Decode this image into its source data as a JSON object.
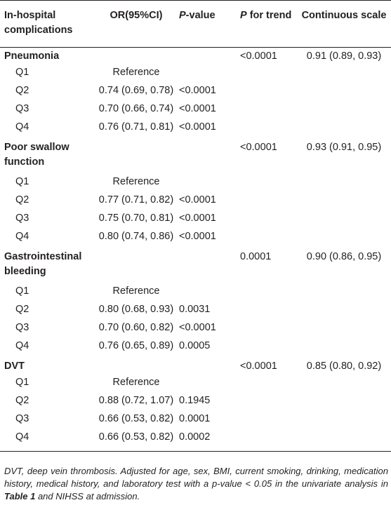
{
  "table": {
    "headers": {
      "complications": "In-hospital complications",
      "or": "OR(95%CI)",
      "p_prefix": "P",
      "p_suffix": "-value",
      "trend_prefix": "P",
      "trend_suffix": " for trend",
      "continuous": "Continuous scale"
    },
    "groups": [
      {
        "name": "Pneumonia",
        "p_trend": "<0.0001",
        "continuous": "0.91 (0.89, 0.93)",
        "rows": [
          {
            "q": "Q1",
            "or": "Reference",
            "p": ""
          },
          {
            "q": "Q2",
            "or": "0.74 (0.69, 0.78)",
            "p": "<0.0001"
          },
          {
            "q": "Q3",
            "or": "0.70 (0.66, 0.74)",
            "p": "<0.0001"
          },
          {
            "q": "Q4",
            "or": "0.76 (0.71, 0.81)",
            "p": "<0.0001"
          }
        ]
      },
      {
        "name": "Poor swallow function",
        "p_trend": "<0.0001",
        "continuous": "0.93 (0.91, 0.95)",
        "rows": [
          {
            "q": "Q1",
            "or": "Reference",
            "p": ""
          },
          {
            "q": "Q2",
            "or": "0.77 (0.71, 0.82)",
            "p": "<0.0001"
          },
          {
            "q": "Q3",
            "or": "0.75 (0.70, 0.81)",
            "p": "<0.0001"
          },
          {
            "q": "Q4",
            "or": "0.80 (0.74, 0.86)",
            "p": "<0.0001"
          }
        ]
      },
      {
        "name": "Gastrointestinal bleeding",
        "p_trend": "0.0001",
        "continuous": "0.90 (0.86, 0.95)",
        "rows": [
          {
            "q": "Q1",
            "or": "Reference",
            "p": ""
          },
          {
            "q": "Q2",
            "or": "0.80 (0.68, 0.93)",
            "p": "0.0031"
          },
          {
            "q": "Q3",
            "or": "0.70 (0.60, 0.82)",
            "p": "<0.0001"
          },
          {
            "q": "Q4",
            "or": "0.76 (0.65, 0.89)",
            "p": "0.0005"
          }
        ]
      },
      {
        "name": "DVT",
        "p_trend": "<0.0001",
        "continuous": "0.85 (0.80, 0.92)",
        "rows": [
          {
            "q": "Q1",
            "or": "Reference",
            "p": ""
          },
          {
            "q": "Q2",
            "or": "0.88 (0.72, 1.07)",
            "p": "0.1945"
          },
          {
            "q": "Q3",
            "or": "0.66 (0.53, 0.82)",
            "p": "0.0001"
          },
          {
            "q": "Q4",
            "or": "0.66 (0.53, 0.82)",
            "p": "0.0002"
          }
        ]
      }
    ]
  },
  "footnote": {
    "before_bold": "DVT, deep vein thrombosis. Adjusted for age, sex, BMI, current smoking, drinking, medication history, medical history, and laboratory test with a p-value < 0.05 in the univariate analysis in ",
    "bold": "Table 1",
    "after_bold": " and NIHSS at admission."
  }
}
